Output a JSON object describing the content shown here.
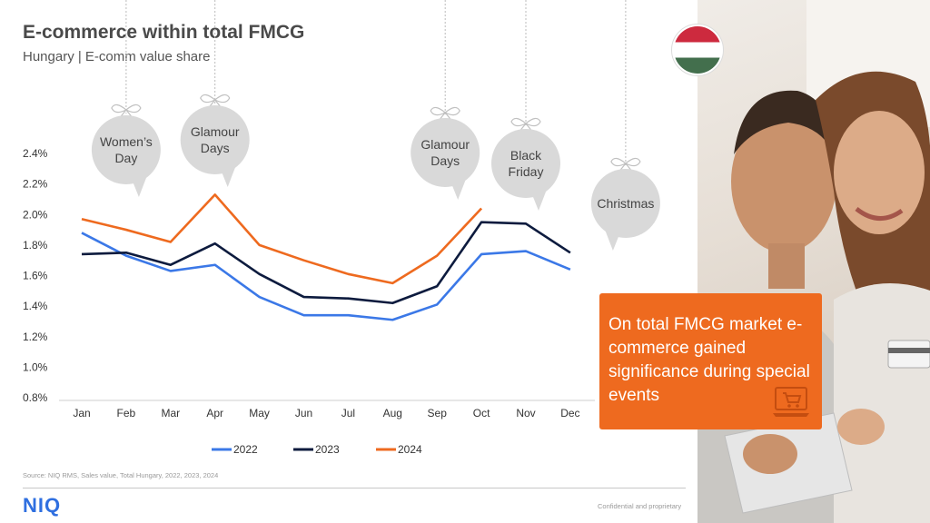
{
  "header": {
    "title": "E-commerce within total FMCG",
    "subtitle": "Hungary | E-comm value share"
  },
  "chart_data": {
    "type": "line",
    "categories": [
      "Jan",
      "Feb",
      "Mar",
      "Apr",
      "May",
      "Jun",
      "Jul",
      "Aug",
      "Sep",
      "Oct",
      "Nov",
      "Dec"
    ],
    "series": [
      {
        "name": "2022",
        "color": "#3b78e7",
        "values": [
          1.88,
          1.73,
          1.63,
          1.67,
          1.46,
          1.34,
          1.34,
          1.31,
          1.41,
          1.74,
          1.76,
          1.64
        ]
      },
      {
        "name": "2023",
        "color": "#0d1b3e",
        "values": [
          1.74,
          1.75,
          1.67,
          1.81,
          1.61,
          1.46,
          1.45,
          1.42,
          1.53,
          1.95,
          1.94,
          1.75
        ]
      },
      {
        "name": "2024",
        "color": "#ee6a1f",
        "values": [
          1.97,
          1.9,
          1.82,
          2.13,
          1.8,
          1.7,
          1.61,
          1.55,
          1.73,
          2.04,
          null,
          null
        ]
      }
    ],
    "yticks": [
      "0.8%",
      "1.0%",
      "1.2%",
      "1.4%",
      "1.6%",
      "1.8%",
      "2.0%",
      "2.2%",
      "2.4%"
    ],
    "ylim": [
      0.8,
      2.4
    ],
    "grid": false,
    "legend_position": "bottom",
    "annotations": [
      {
        "label": "Women’s Day",
        "lines": [
          "Women’s",
          "Day"
        ],
        "month": "Feb"
      },
      {
        "label": "Glamour Days",
        "lines": [
          "Glamour",
          "Days"
        ],
        "month": "Apr"
      },
      {
        "label": "Glamour Days",
        "lines": [
          "Glamour",
          "Days"
        ],
        "month": "Sep"
      },
      {
        "label": "Black Friday",
        "lines": [
          "Black",
          "Friday"
        ],
        "month": "Nov"
      },
      {
        "label": "Christmas",
        "lines": [
          "Christmas"
        ],
        "month": "Dec"
      }
    ]
  },
  "callout": {
    "text": "On total FMCG market e-commerce gained significance during special events",
    "icon": "laptop-cart-icon"
  },
  "flag": {
    "icon": "hungary-flag-icon",
    "colors": [
      "#cd2a3e",
      "#ffffff",
      "#436f4d"
    ]
  },
  "footer": {
    "source": "Source: NIQ RMS, Sales value, Total Hungary, 2022, 2023, 2024",
    "logo": "NIQ",
    "confidential": "Confidential and proprietary"
  }
}
